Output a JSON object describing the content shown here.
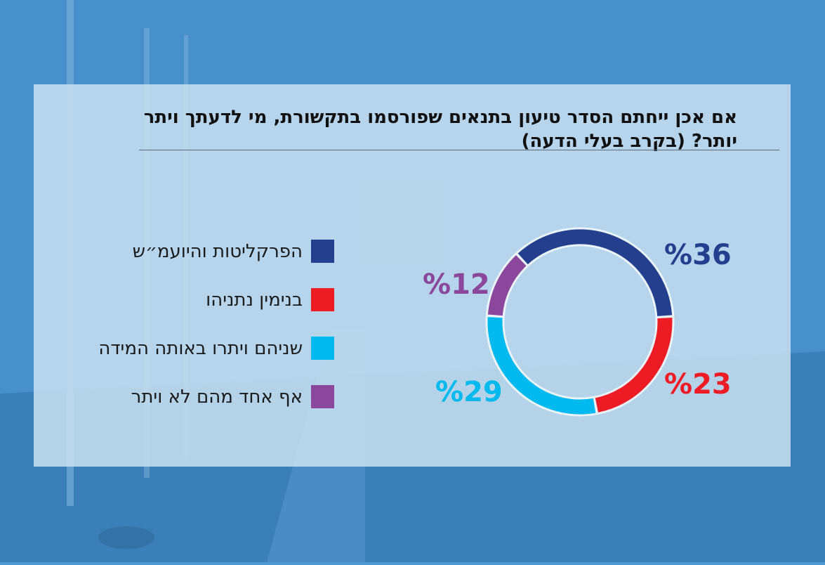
{
  "title": "אם אכן ייחתם הסדר טיעון בתנאים שפורסמו בתקשורת, מי לדעתך ויתר יותר? (בקרב בעלי הדעה)",
  "colors": {
    "navy": "#253f8f",
    "red": "#ed1c24",
    "cyan": "#00b9ef",
    "purple": "#8a479b"
  },
  "legend": [
    {
      "label": "הפרקליטות והיועמ״ש",
      "color": "#253f8f"
    },
    {
      "label": "בנימין נתניהו",
      "color": "#ed1c24"
    },
    {
      "label": "שניהם ויתרו באותה המידה",
      "color": "#00b9ef"
    },
    {
      "label": "אף אחד מהם לא ויתר",
      "color": "#8a479b"
    }
  ],
  "labels": {
    "navy": "%36",
    "red": "%23",
    "cyan": "%29",
    "purple": "%12"
  },
  "chart_data": {
    "type": "pie",
    "title": "אם אכן ייחתם הסדר טיעון בתנאים שפורסמו בתקשורת, מי לדעתך ויתר יותר? (בקרב בעלי הדעה)",
    "categories": [
      "הפרקליטות והיועמ״ש",
      "בנימין נתניהו",
      "שניהם ויתרו באותה המידה",
      "אף אחד מהם לא ויתר"
    ],
    "values": [
      36,
      23,
      29,
      12
    ],
    "unit": "%",
    "colors": [
      "#253f8f",
      "#ed1c24",
      "#00b9ef",
      "#8a479b"
    ],
    "style": "donut",
    "legend_position": "left"
  }
}
